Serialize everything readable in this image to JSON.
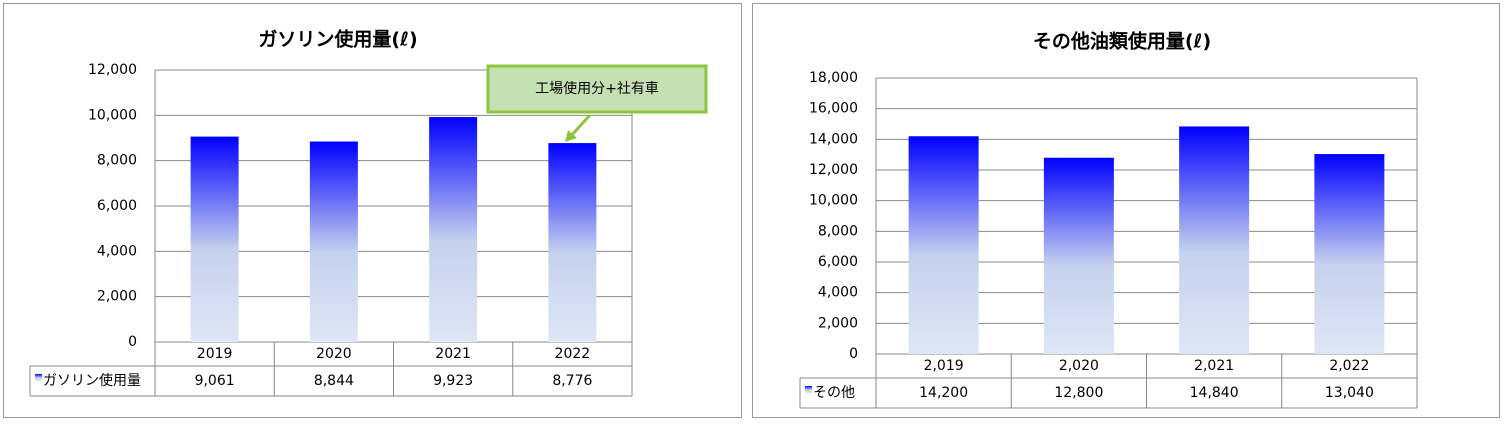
{
  "chart_data": [
    {
      "type": "bar",
      "title": "ガソリン使用量(ℓ)",
      "categories": [
        "2019",
        "2020",
        "2021",
        "2022"
      ],
      "series": [
        {
          "name": "ガソリン使用量",
          "color": "#0000ff",
          "values": [
            9061,
            8844,
            9923,
            8776
          ],
          "value_labels": [
            "9,061",
            "8,844",
            "9,923",
            "8,776"
          ]
        }
      ],
      "ylim": [
        0,
        12000
      ],
      "yticks": [
        0,
        {
          "value": 2000,
          "label": "2,000"
        },
        {
          "value": 4000,
          "label": "4,000"
        },
        {
          "value": 6000,
          "label": "6,000"
        },
        {
          "value": 8000,
          "label": "8,000"
        },
        {
          "value": 10000,
          "label": "10,000"
        },
        {
          "value": 12000,
          "label": "12,000"
        }
      ],
      "grid": true,
      "annotation": "工場使用分+社有車"
    },
    {
      "type": "bar",
      "title": "その他油類使用量(ℓ)",
      "categories": [
        "2,019",
        "2,020",
        "2,021",
        "2,022"
      ],
      "series": [
        {
          "name": "その他",
          "color": "#0000ff",
          "values": [
            14200,
            12800,
            14840,
            13040
          ],
          "value_labels": [
            "14,200",
            "12,800",
            "14,840",
            "13,040"
          ]
        }
      ],
      "ylim": [
        0,
        18000
      ],
      "yticks": [
        0,
        {
          "value": 2000,
          "label": "2,000"
        },
        {
          "value": 4000,
          "label": "4,000"
        },
        {
          "value": 6000,
          "label": "6,000"
        },
        {
          "value": 8000,
          "label": "8,000"
        },
        {
          "value": 10000,
          "label": "10,000"
        },
        {
          "value": 12000,
          "label": "12,000"
        },
        {
          "value": 14000,
          "label": "14,000"
        },
        {
          "value": 16000,
          "label": "16,000"
        },
        {
          "value": 18000,
          "label": "18,000"
        }
      ],
      "grid": true
    }
  ]
}
